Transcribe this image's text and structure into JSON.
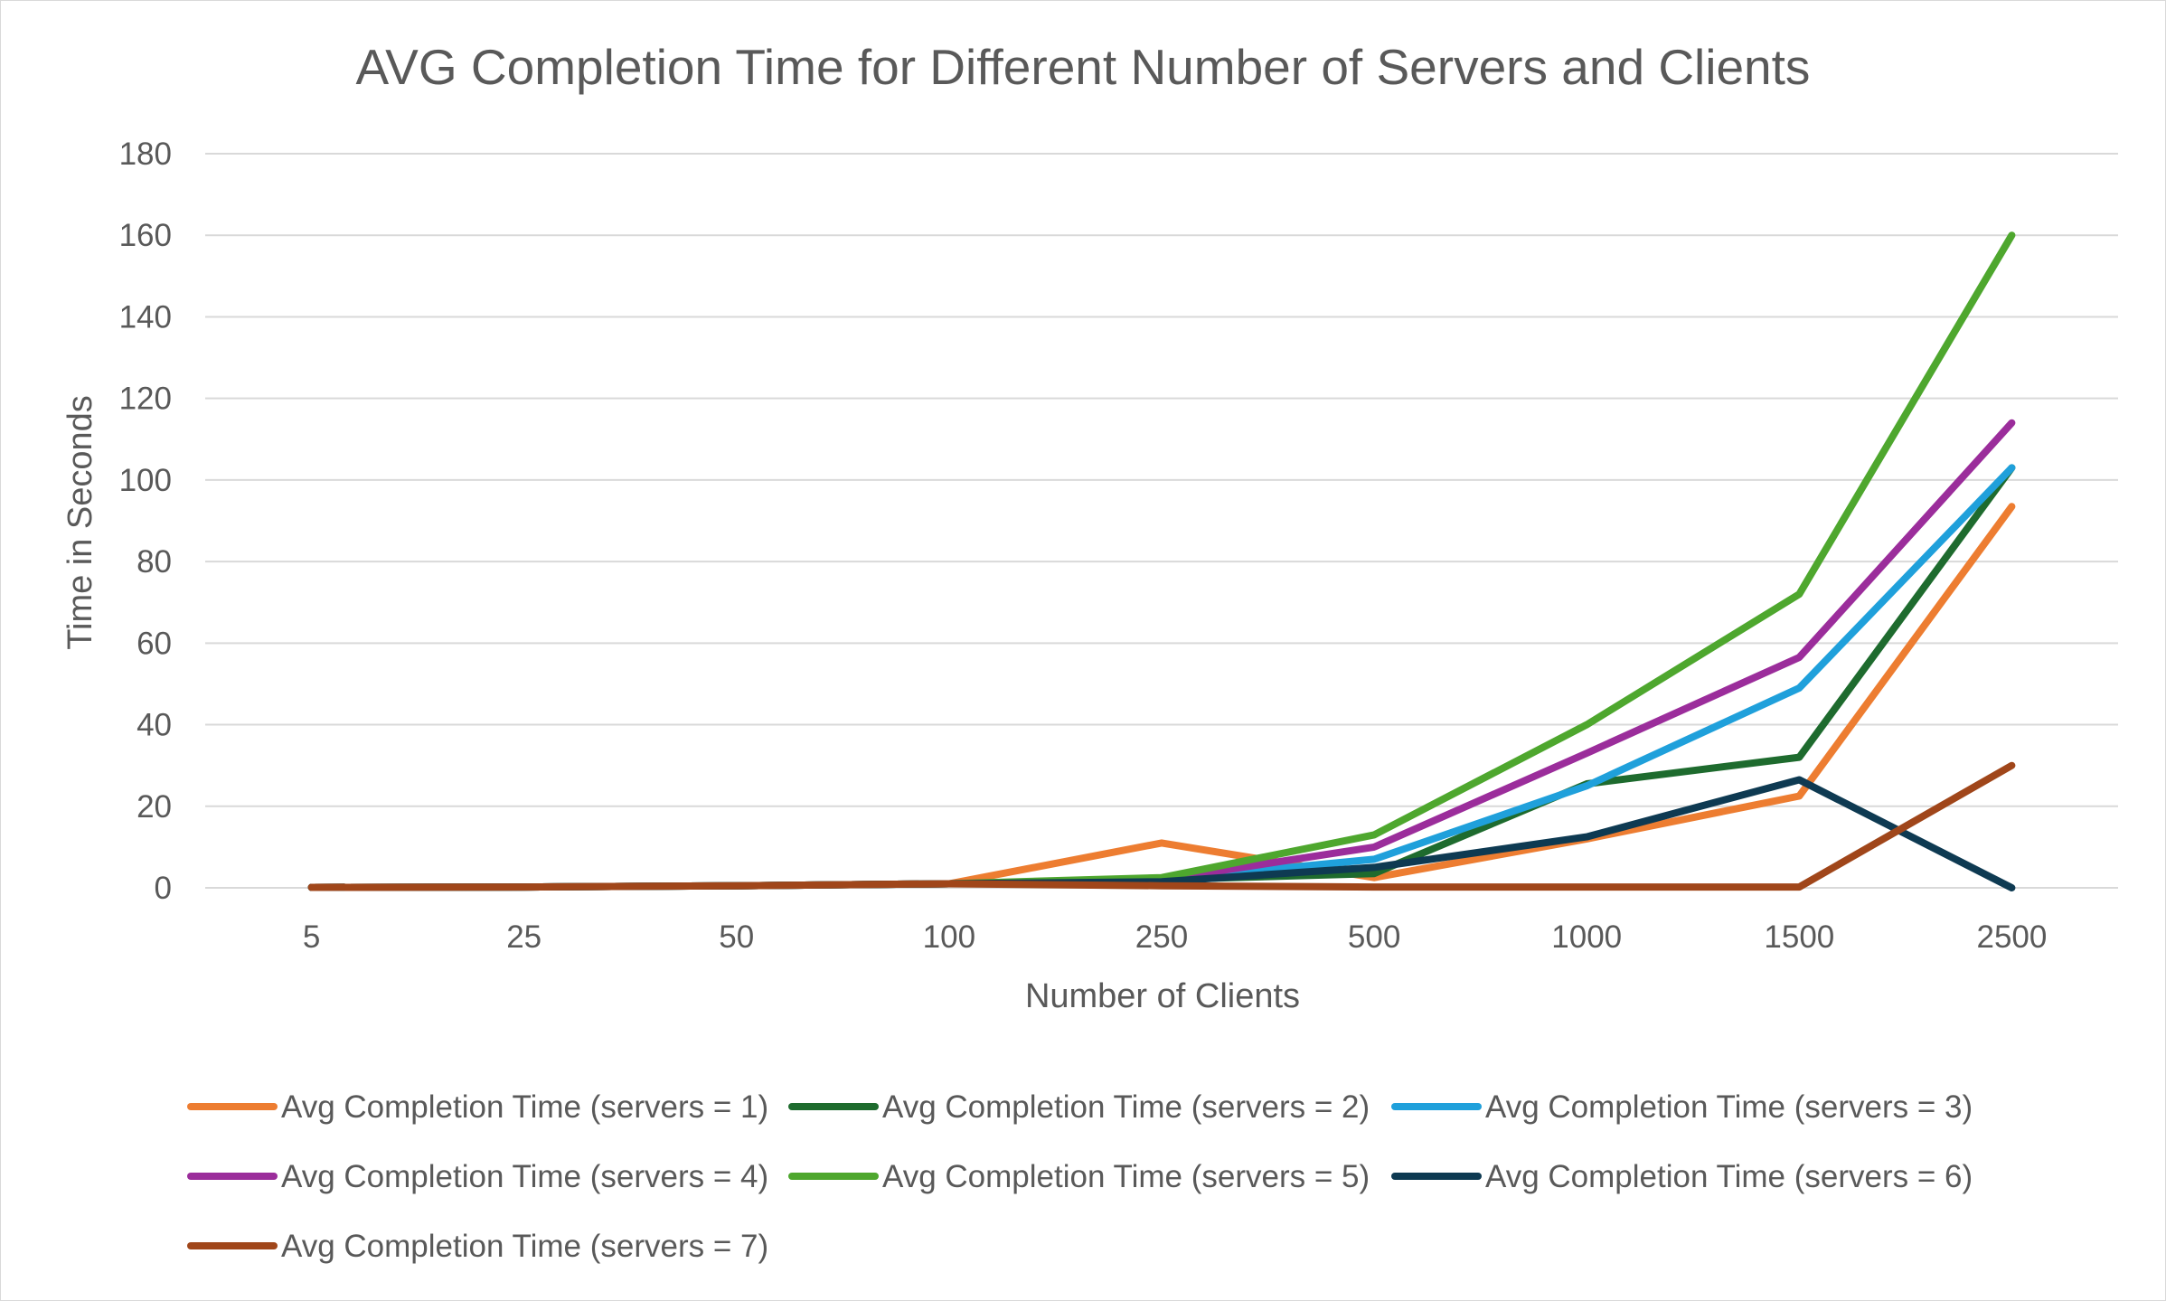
{
  "chart_data": {
    "type": "line",
    "title": "AVG Completion Time for Different Number of Servers and Clients",
    "xlabel": "Number of Clients",
    "ylabel": "Time in Seconds",
    "categories": [
      "5",
      "25",
      "50",
      "100",
      "250",
      "500",
      "1000",
      "1500",
      "2500"
    ],
    "ylim": [
      0,
      180
    ],
    "yticks": [
      "0",
      "20",
      "40",
      "60",
      "80",
      "100",
      "120",
      "140",
      "160",
      "180"
    ],
    "grid": true,
    "legend_position": "bottom",
    "series": [
      {
        "name": "Avg Completion Time (servers = 1)",
        "color": "#ED7D31",
        "values": [
          0.1,
          0.2,
          0.5,
          1,
          11,
          2.5,
          12,
          22.5,
          93.5
        ]
      },
      {
        "name": "Avg Completion Time (servers = 2)",
        "color": "#1E6B2E",
        "values": [
          0.1,
          0.2,
          0.5,
          1,
          2,
          3.5,
          25.5,
          32,
          103
        ]
      },
      {
        "name": "Avg Completion Time (servers = 3)",
        "color": "#1FA0DB",
        "values": [
          0.1,
          0.2,
          0.5,
          1,
          2,
          7,
          25,
          49,
          103
        ]
      },
      {
        "name": "Avg Completion Time (servers = 4)",
        "color": "#9B2D9B",
        "values": [
          0.1,
          0.2,
          0.5,
          1,
          2,
          10,
          33,
          56.5,
          114
        ]
      },
      {
        "name": "Avg Completion Time (servers = 5)",
        "color": "#4EA72E",
        "values": [
          0.1,
          0.2,
          0.5,
          1,
          2.5,
          13,
          40,
          72,
          160
        ]
      },
      {
        "name": "Avg Completion Time (servers = 6)",
        "color": "#0E3A52",
        "values": [
          0.1,
          0.2,
          0.5,
          1,
          1.5,
          5,
          12.5,
          26.5,
          0
        ]
      },
      {
        "name": "Avg Completion Time (servers = 7)",
        "color": "#A0461A",
        "values": [
          0.1,
          0.2,
          0.5,
          1,
          0.5,
          0.2,
          0.2,
          0.2,
          30
        ]
      }
    ]
  }
}
